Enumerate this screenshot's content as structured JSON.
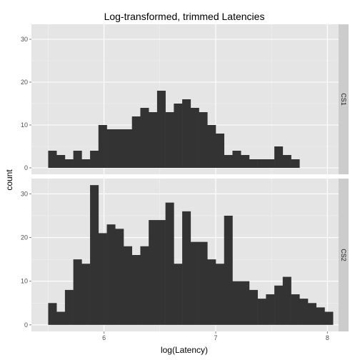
{
  "chart_data": {
    "type": "bar",
    "title": "Log-transformed, trimmed Latencies",
    "xlabel": "log(Latency)",
    "ylabel": "count",
    "xlim": [
      5.35,
      8.1
    ],
    "ylim": [
      -1.5,
      33.5
    ],
    "x_ticks": [
      6,
      7,
      8
    ],
    "y_ticks": [
      0,
      10,
      20,
      30
    ],
    "bin_start": 5.5,
    "bin_width": 0.075,
    "grid": true,
    "facets": [
      {
        "name": "CS1",
        "values": [
          4,
          3,
          2,
          4,
          2,
          4,
          10,
          9,
          9,
          9,
          12,
          14,
          13,
          18,
          13,
          15,
          16,
          14,
          13,
          10,
          8,
          3,
          4,
          3,
          2,
          2,
          2,
          5,
          3,
          2
        ]
      },
      {
        "name": "CS2",
        "values": [
          5,
          3,
          8,
          15,
          14,
          32,
          21,
          23,
          22,
          18,
          16,
          18,
          24,
          24,
          28,
          14,
          26,
          19,
          19,
          15,
          14,
          25,
          10,
          10,
          8,
          6,
          7,
          9,
          11,
          7,
          6,
          5,
          4,
          3
        ]
      }
    ]
  }
}
